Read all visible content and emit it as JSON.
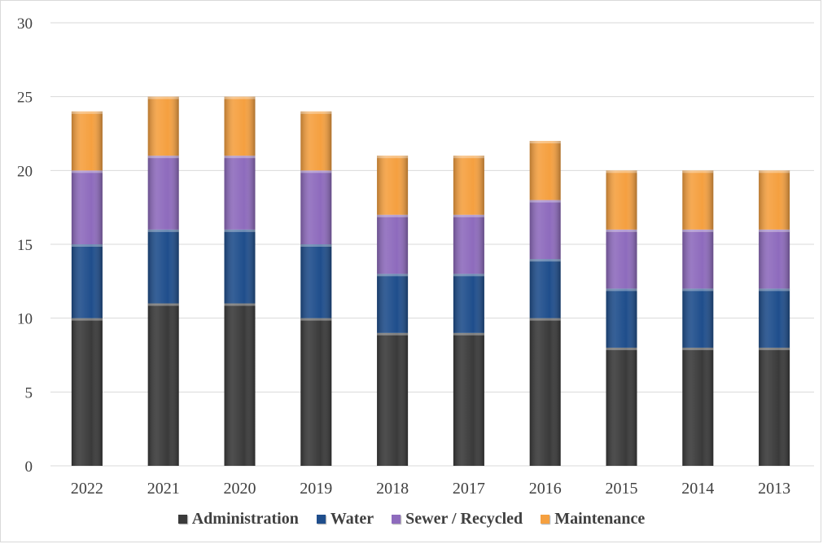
{
  "chart_data": {
    "type": "bar",
    "stacked": true,
    "categories": [
      "2022",
      "2021",
      "2020",
      "2019",
      "2018",
      "2017",
      "2016",
      "2015",
      "2014",
      "2013"
    ],
    "series": [
      {
        "name": "Administration",
        "color": "#3a3a3a",
        "values": [
          10,
          11,
          11,
          10,
          9,
          9,
          10,
          8,
          8,
          8
        ]
      },
      {
        "name": "Water",
        "color": "#1f4e8c",
        "values": [
          5,
          5,
          5,
          5,
          4,
          4,
          4,
          4,
          4,
          4
        ]
      },
      {
        "name": "Sewer / Recycled",
        "color": "#8e6bbd",
        "values": [
          5,
          5,
          5,
          5,
          4,
          4,
          4,
          4,
          4,
          4
        ]
      },
      {
        "name": "Maintenance",
        "color": "#f5a040",
        "values": [
          4,
          4,
          4,
          4,
          4,
          4,
          4,
          4,
          4,
          4
        ]
      }
    ],
    "ylim": [
      0,
      30
    ],
    "yticks": [
      0,
      5,
      10,
      15,
      20,
      25,
      30
    ],
    "grid": true,
    "legend_position": "bottom"
  }
}
